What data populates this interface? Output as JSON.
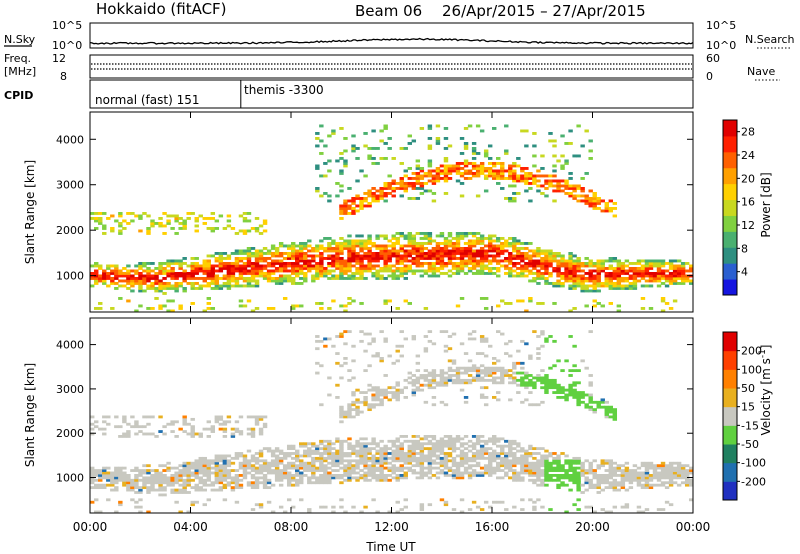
{
  "header": {
    "station": "Hokkaido (fitACF)",
    "beam": "Beam 06",
    "dates": "26/Apr/2015 – 27/Apr/2015"
  },
  "top_panels": {
    "nsky_label": "N.Sky",
    "nsky_ticks": [
      "10^5",
      "10^0"
    ],
    "nsearch_label": "N.Search",
    "nsearch_ticks": [
      "10^5",
      "10^0"
    ],
    "freq_label": "Freq.",
    "freq_unit": "[MHz]",
    "freq_ticks": [
      "12",
      "8"
    ],
    "nave_label": "Nave",
    "nave_ticks": [
      "60",
      "0"
    ],
    "cpid_label": "CPID",
    "cpid_segments": [
      {
        "label": "normal (fast) 151",
        "start_h": 0,
        "end_h": 6
      },
      {
        "label": "themis -3300",
        "start_h": 6,
        "end_h": 24
      }
    ]
  },
  "chart_data": [
    {
      "type": "heatmap",
      "name": "power",
      "ylabel": "Slant Range [km]",
      "ylim": [
        200,
        4600
      ],
      "yticks": [
        "1000",
        "2000",
        "3000",
        "4000"
      ],
      "xlim": [
        0,
        24
      ],
      "xticks": [
        "00:00",
        "04:00",
        "08:00",
        "12:00",
        "16:00",
        "20:00",
        "00:00"
      ],
      "colorbar": {
        "label": "Power [dB]",
        "ticks": [
          "4",
          "8",
          "12",
          "16",
          "20",
          "24",
          "28"
        ],
        "range": [
          0,
          30
        ],
        "colors": [
          "#1515e0",
          "#2a5fd0",
          "#2e8f80",
          "#4ab070",
          "#80d040",
          "#c8d820",
          "#ffd000",
          "#ffa000",
          "#ff6000",
          "#ff2000",
          "#e00000"
        ]
      },
      "features": [
        {
          "label": "main band",
          "range_km_start": 1000,
          "range_km_end": 1000
        },
        {
          "label": "upper arc",
          "range_km_peak": 3300,
          "time_h_peak": 16
        }
      ]
    },
    {
      "type": "heatmap",
      "name": "velocity",
      "ylabel": "Slant Range [km]",
      "ylim": [
        200,
        4600
      ],
      "yticks": [
        "1000",
        "2000",
        "3000",
        "4000"
      ],
      "xlim": [
        0,
        24
      ],
      "xticks": [
        "00:00",
        "04:00",
        "08:00",
        "12:00",
        "16:00",
        "20:00",
        "00:00"
      ],
      "xlabel": "Time UT",
      "colorbar": {
        "label": "Velocity [m s^-1]",
        "ticks": [
          "200",
          "100",
          "50",
          "15",
          "-15",
          "-50",
          "-100",
          "-200"
        ],
        "colors": [
          "#2030c0",
          "#2070b0",
          "#208060",
          "#60d040",
          "#c8c8c0",
          "#e8b020",
          "#ff8000",
          "#ff4000",
          "#e00000"
        ]
      }
    }
  ]
}
